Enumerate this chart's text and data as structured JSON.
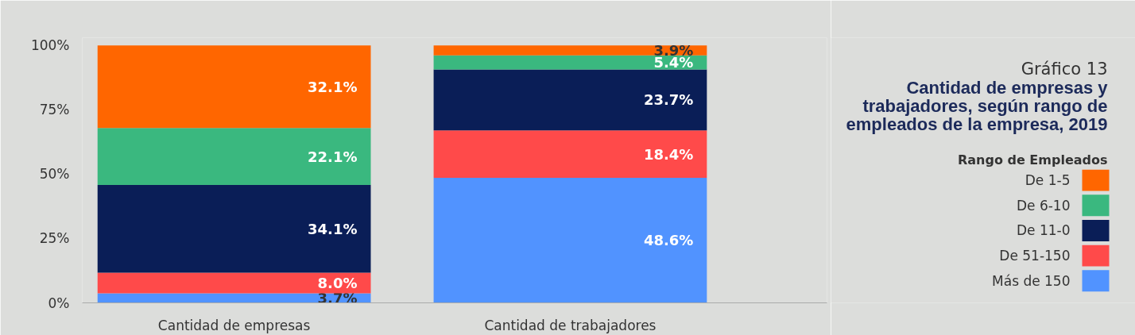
{
  "chart_data": {
    "type": "bar",
    "stacked": true,
    "title": "Gráfico 13",
    "subtitle": "Cantidad de empresas y trabajadores, según rango de empleados de la empresa, 2019",
    "legend_title": "Rango de Empleados",
    "legend": "right",
    "categories": [
      "Cantidad de empresas",
      "Cantidad de trabajadores"
    ],
    "ylim": [
      0,
      103
    ],
    "yticks": [
      {
        "value": 0,
        "label": "0%"
      },
      {
        "value": 25,
        "label": "25%"
      },
      {
        "value": 50,
        "label": "50%"
      },
      {
        "value": 75,
        "label": "75%"
      },
      {
        "value": 100,
        "label": "100%"
      }
    ],
    "series": [
      {
        "name": "Más de 150",
        "color": "#5193ff",
        "values": [
          3.7,
          48.6
        ],
        "value_labels": [
          "3.7%",
          "48.6%"
        ]
      },
      {
        "name": "De 51-150",
        "color": "#ff4a4a",
        "values": [
          8.0,
          18.4
        ],
        "value_labels": [
          "8.0%",
          "18.4%"
        ]
      },
      {
        "name": "De 11-0",
        "color": "#0a1e57",
        "values": [
          34.1,
          23.7
        ],
        "value_labels": [
          "34.1%",
          "23.7%"
        ]
      },
      {
        "name": "De 6-10",
        "color": "#3ab87f",
        "values": [
          22.1,
          5.4
        ],
        "value_labels": [
          "22.1%",
          "5.4%"
        ]
      },
      {
        "name": "De 1-5",
        "color": "#ff6600",
        "values": [
          32.1,
          3.9
        ],
        "value_labels": [
          "32.1%",
          "3.9%"
        ]
      }
    ]
  }
}
